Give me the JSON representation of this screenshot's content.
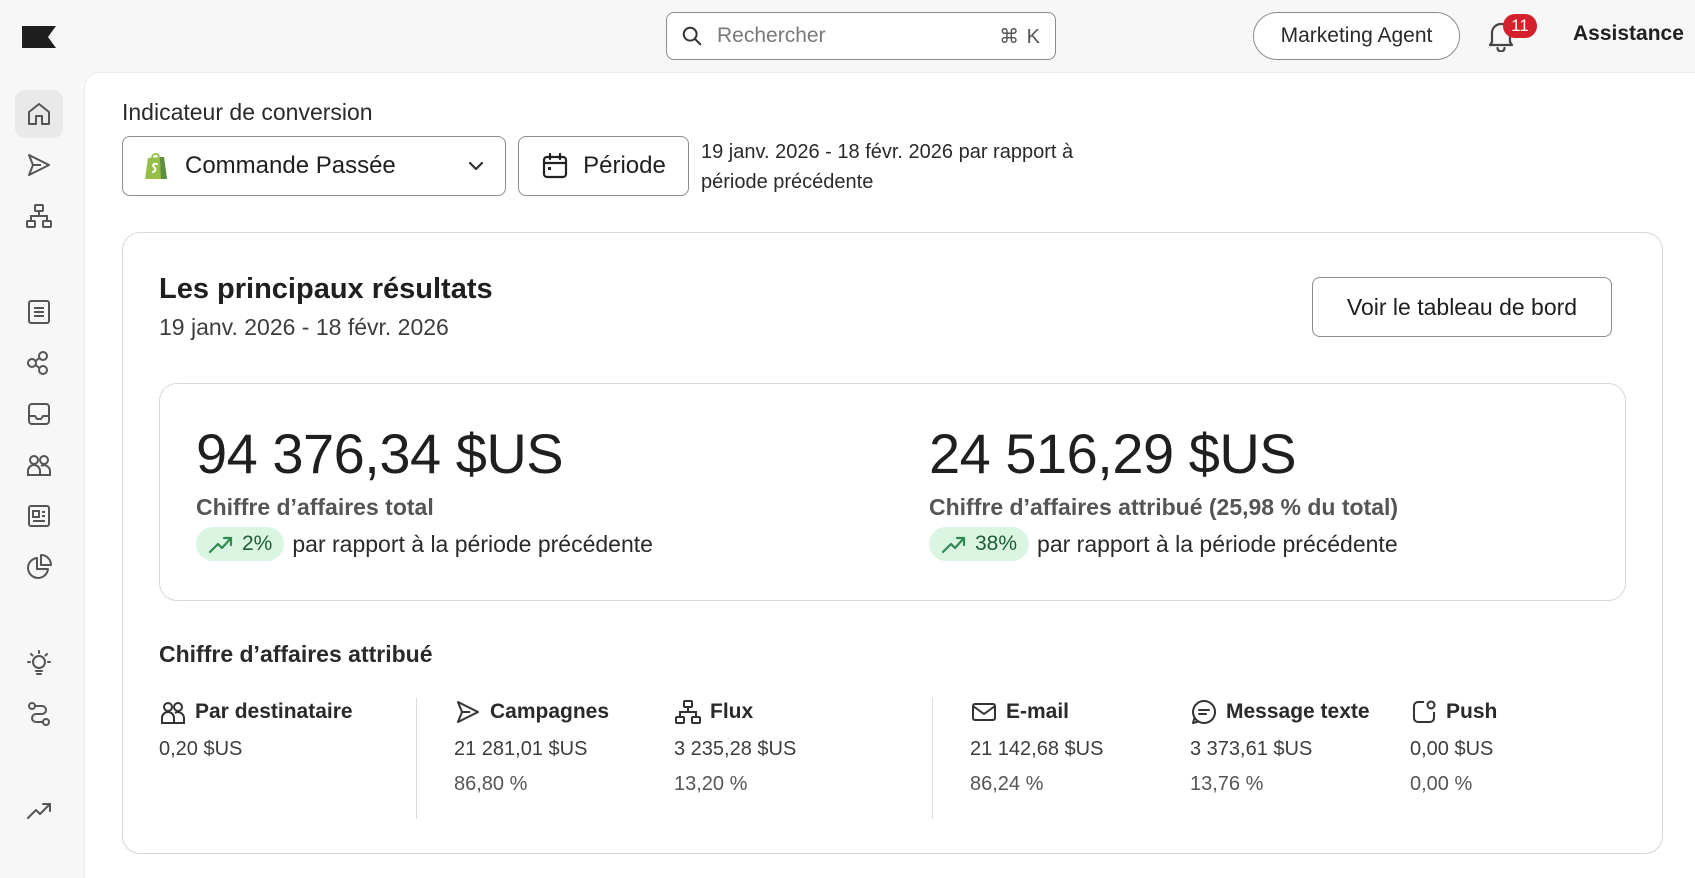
{
  "header": {
    "logo_icon": "brand-flag-icon",
    "search_placeholder": "Rechercher",
    "search_shortcut": "⌘ K",
    "agent_button": "Marketing Agent",
    "notification_count": "11",
    "help_label": "Assistance"
  },
  "sidebar": {
    "items": [
      {
        "icon": "home-icon",
        "active": true
      },
      {
        "icon": "send-icon"
      },
      {
        "icon": "flow-icon"
      },
      {
        "icon": "list-icon"
      },
      {
        "icon": "segments-icon"
      },
      {
        "icon": "inbox-icon"
      },
      {
        "icon": "audience-icon"
      },
      {
        "icon": "content-icon"
      },
      {
        "icon": "analytics-pie-icon"
      },
      {
        "icon": "bulb-icon"
      },
      {
        "icon": "integrations-icon"
      },
      {
        "icon": "trend-icon"
      }
    ]
  },
  "filters": {
    "label": "Indicateur de conversion",
    "metric_value": "Commande Passée",
    "period_button": "Période",
    "period_description": "19 janv. 2026 - 18 févr. 2026 par rapport à période précédente"
  },
  "results": {
    "title": "Les principaux résultats",
    "date_range": "19 janv. 2026 - 18 févr. 2026",
    "dashboard_button": "Voir le tableau de bord",
    "kpis": [
      {
        "value": "94 376,34 $US",
        "label": "Chiffre d’affaires total",
        "change": "2%",
        "comparison": "par rapport à la période précédente"
      },
      {
        "value": "24 516,29 $US",
        "label": "Chiffre d’affaires attribué (25,98 % du total)",
        "change": "38%",
        "comparison": "par rapport à la période précédente"
      }
    ],
    "attributed_title": "Chiffre d’affaires attribué",
    "metrics": [
      {
        "icon": "recipients-icon",
        "label": "Par destinataire",
        "value": "0,20 $US",
        "percent": ""
      },
      {
        "icon": "send-icon",
        "label": "Campagnes",
        "value": "21 281,01 $US",
        "percent": "86,80 %"
      },
      {
        "icon": "flow-icon",
        "label": "Flux",
        "value": "3 235,28 $US",
        "percent": "13,20 %"
      },
      {
        "icon": "mail-icon",
        "label": "E-mail",
        "value": "21 142,68 $US",
        "percent": "86,24 %"
      },
      {
        "icon": "sms-icon",
        "label": "Message texte",
        "value": "3 373,61 $US",
        "percent": "13,76 %"
      },
      {
        "icon": "push-icon",
        "label": "Push",
        "value": "0,00 $US",
        "percent": "0,00 %"
      }
    ]
  },
  "colors": {
    "positive_pill_bg": "#dbf5e3",
    "positive_icon": "#2f8a4e",
    "badge": "#d4202a",
    "shopify_green": "#95bf47"
  }
}
